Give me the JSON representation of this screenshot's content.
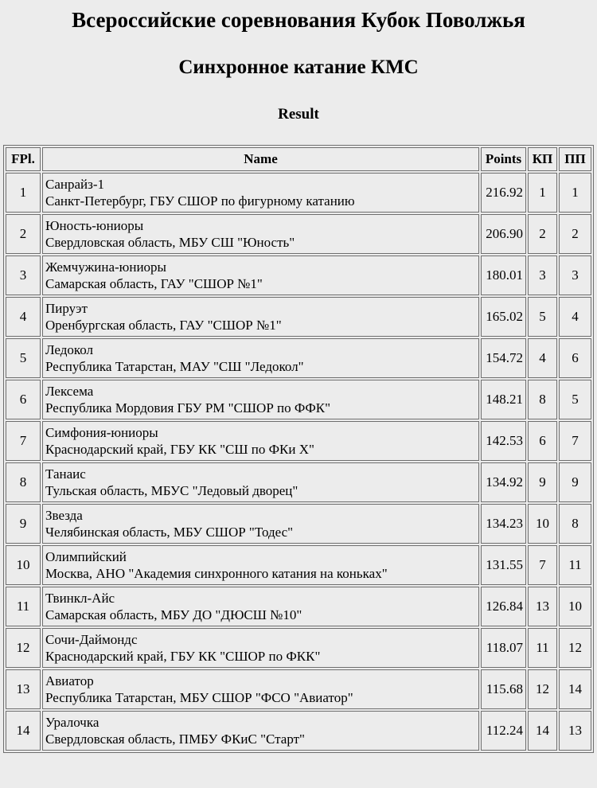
{
  "page": {
    "title": "Всероссийские соревнования Кубок Поволжья",
    "subtitle": "Синхронное катание КМС",
    "section_heading": "Result"
  },
  "colors": {
    "background": "#ececec",
    "border": "#6e6e6e",
    "text": "#000000"
  },
  "table": {
    "headers": {
      "fpl": "FPl.",
      "name": "Name",
      "points": "Points",
      "kp": "КП",
      "pp": "ПП"
    },
    "rows": [
      {
        "fpl": "1",
        "team": "Санрайз-1",
        "club": "Санкт-Петербург, ГБУ СШОР по фигурному катанию",
        "points": "216.92",
        "kp": "1",
        "pp": "1"
      },
      {
        "fpl": "2",
        "team": "Юность-юниоры",
        "club": "Свердловская область, МБУ СШ \"Юность\"",
        "points": "206.90",
        "kp": "2",
        "pp": "2"
      },
      {
        "fpl": "3",
        "team": "Жемчужина-юниоры",
        "club": "Самарская область, ГАУ \"СШОР №1\"",
        "points": "180.01",
        "kp": "3",
        "pp": "3"
      },
      {
        "fpl": "4",
        "team": "Пируэт",
        "club": "Оренбургская область, ГАУ \"СШОР №1\"",
        "points": "165.02",
        "kp": "5",
        "pp": "4"
      },
      {
        "fpl": "5",
        "team": "Ледокол",
        "club": "Республика Татарстан, МАУ \"СШ \"Ледокол\"",
        "points": "154.72",
        "kp": "4",
        "pp": "6"
      },
      {
        "fpl": "6",
        "team": "Лексема",
        "club": "Республика Мордовия ГБУ РМ \"СШОР по ФФК\"",
        "points": "148.21",
        "kp": "8",
        "pp": "5"
      },
      {
        "fpl": "7",
        "team": "Симфония-юниоры",
        "club": "Краснодарский край, ГБУ КК \"СШ по ФКи Х\"",
        "points": "142.53",
        "kp": "6",
        "pp": "7"
      },
      {
        "fpl": "8",
        "team": "Танаис",
        "club": "Тульская область, МБУС \"Ледовый дворец\"",
        "points": "134.92",
        "kp": "9",
        "pp": "9"
      },
      {
        "fpl": "9",
        "team": "Звезда",
        "club": "Челябинская область, МБУ СШОР \"Тодес\"",
        "points": "134.23",
        "kp": "10",
        "pp": "8"
      },
      {
        "fpl": "10",
        "team": "Олимпийский",
        "club": "Москва, АНО \"Академия синхронного катания на коньках\"",
        "points": "131.55",
        "kp": "7",
        "pp": "11"
      },
      {
        "fpl": "11",
        "team": "Твинкл-Айс",
        "club": "Самарская область, МБУ ДО \"ДЮСШ №10\"",
        "points": "126.84",
        "kp": "13",
        "pp": "10"
      },
      {
        "fpl": "12",
        "team": "Сочи-Даймондс",
        "club": "Краснодарский край, ГБУ КК \"СШОР по ФКК\"",
        "points": "118.07",
        "kp": "11",
        "pp": "12"
      },
      {
        "fpl": "13",
        "team": "Авиатор",
        "club": "Республика Татарстан, МБУ СШОР \"ФСО \"Авиатор\"",
        "points": "115.68",
        "kp": "12",
        "pp": "14"
      },
      {
        "fpl": "14",
        "team": "Уралочка",
        "club": "Свердловская область, ПМБУ ФКиС \"Старт\"",
        "points": "112.24",
        "kp": "14",
        "pp": "13"
      }
    ]
  }
}
